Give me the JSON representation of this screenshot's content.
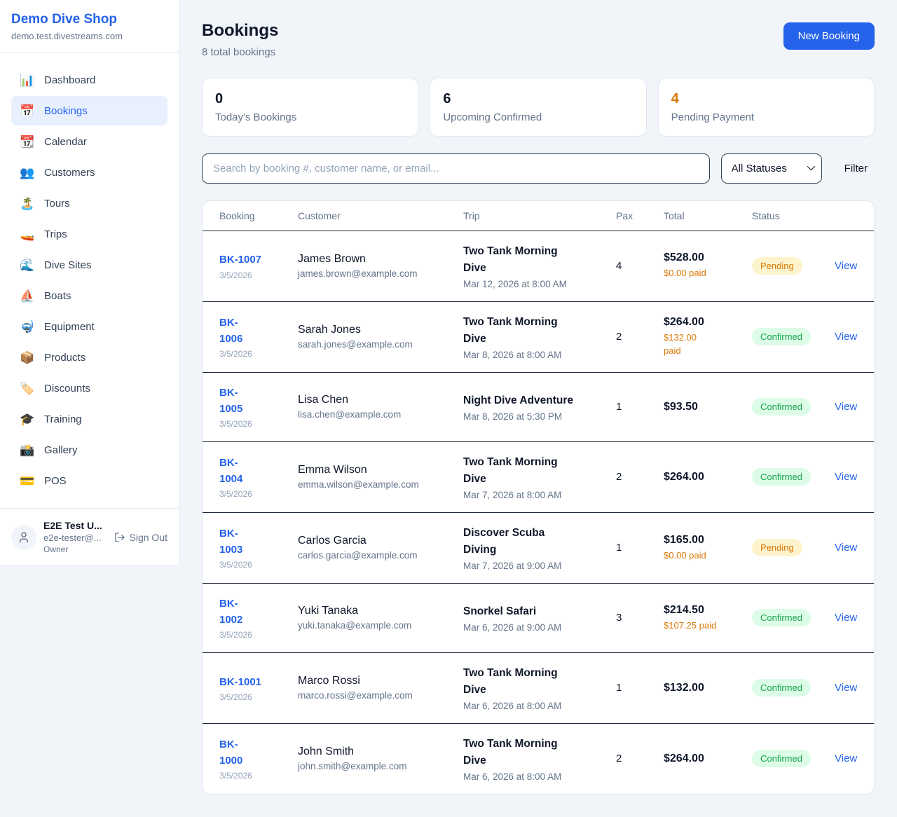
{
  "sidebar": {
    "brand": {
      "name": "Demo Dive Shop",
      "domain": "demo.test.divestreams.com"
    },
    "items": [
      {
        "label": "Dashboard",
        "icon": "bar-chart-icon",
        "glyph": "📊",
        "active": false
      },
      {
        "label": "Bookings",
        "icon": "calendar-icon",
        "glyph": "📅",
        "active": true
      },
      {
        "label": "Calendar",
        "icon": "tear-off-calendar-icon",
        "glyph": "📆",
        "active": false
      },
      {
        "label": "Customers",
        "icon": "people-icon",
        "glyph": "👥",
        "active": false
      },
      {
        "label": "Tours",
        "icon": "island-icon",
        "glyph": "🏝️",
        "active": false
      },
      {
        "label": "Trips",
        "icon": "speedboat-icon",
        "glyph": "🚤",
        "active": false
      },
      {
        "label": "Dive Sites",
        "icon": "wave-icon",
        "glyph": "🌊",
        "active": false
      },
      {
        "label": "Boats",
        "icon": "sailboat-icon",
        "glyph": "⛵",
        "active": false
      },
      {
        "label": "Equipment",
        "icon": "diving-mask-icon",
        "glyph": "🤿",
        "active": false
      },
      {
        "label": "Products",
        "icon": "package-icon",
        "glyph": "📦",
        "active": false
      },
      {
        "label": "Discounts",
        "icon": "tag-icon",
        "glyph": "🏷️",
        "active": false
      },
      {
        "label": "Training",
        "icon": "graduation-cap-icon",
        "glyph": "🎓",
        "active": false
      },
      {
        "label": "Gallery",
        "icon": "camera-icon",
        "glyph": "📸",
        "active": false
      },
      {
        "label": "POS",
        "icon": "credit-card-icon",
        "glyph": "💳",
        "active": false
      }
    ],
    "user": {
      "name": "E2E Test U...",
      "email": "e2e-tester@...",
      "role": "Owner",
      "sign_out_label": "Sign Out"
    }
  },
  "header": {
    "title": "Bookings",
    "subtitle": "8 total bookings",
    "new_booking_label": "New Booking"
  },
  "stats": [
    {
      "value": "0",
      "label": "Today's Bookings",
      "accent": false
    },
    {
      "value": "6",
      "label": "Upcoming Confirmed",
      "accent": false
    },
    {
      "value": "4",
      "label": "Pending Payment",
      "accent": true
    }
  ],
  "filters": {
    "search_placeholder": "Search by booking #, customer name, or email...",
    "status_selected": "All Statuses",
    "filter_label": "Filter"
  },
  "table": {
    "columns": [
      "Booking",
      "Customer",
      "Trip",
      "Pax",
      "Total",
      "Status"
    ],
    "rows": [
      {
        "id": "BK-1007",
        "date": "3/5/2026",
        "customer": "James Brown",
        "email": "james.brown@example.com",
        "trip": "Two Tank Morning\nDive",
        "trip_time": "Mar 12, 2026 at 8:00 AM",
        "pax": "4",
        "total": "$528.00",
        "paid": "$0.00 paid",
        "status": "Pending",
        "action": "View"
      },
      {
        "id": "BK-\n1006",
        "date": "3/5/2026",
        "customer": "Sarah Jones",
        "email": "sarah.jones@example.com",
        "trip": "Two Tank Morning\nDive",
        "trip_time": "Mar 8, 2026 at 8:00 AM",
        "pax": "2",
        "total": "$264.00",
        "paid": "$132.00\npaid",
        "status": "Confirmed",
        "action": "View"
      },
      {
        "id": "BK-\n1005",
        "date": "3/5/2026",
        "customer": "Lisa Chen",
        "email": "lisa.chen@example.com",
        "trip": "Night Dive Adventure",
        "trip_time": "Mar 8, 2026 at 5:30 PM",
        "pax": "1",
        "total": "$93.50",
        "paid": "",
        "status": "Confirmed",
        "action": "View"
      },
      {
        "id": "BK-\n1004",
        "date": "3/5/2026",
        "customer": "Emma Wilson",
        "email": "emma.wilson@example.com",
        "trip": "Two Tank Morning\nDive",
        "trip_time": "Mar 7, 2026 at 8:00 AM",
        "pax": "2",
        "total": "$264.00",
        "paid": "",
        "status": "Confirmed",
        "action": "View"
      },
      {
        "id": "BK-\n1003",
        "date": "3/5/2026",
        "customer": "Carlos Garcia",
        "email": "carlos.garcia@example.com",
        "trip": "Discover Scuba\nDiving",
        "trip_time": "Mar 7, 2026 at 9:00 AM",
        "pax": "1",
        "total": "$165.00",
        "paid": "$0.00 paid",
        "status": "Pending",
        "action": "View"
      },
      {
        "id": "BK-\n1002",
        "date": "3/5/2026",
        "customer": "Yuki Tanaka",
        "email": "yuki.tanaka@example.com",
        "trip": "Snorkel Safari",
        "trip_time": "Mar 6, 2026 at 9:00 AM",
        "pax": "3",
        "total": "$214.50",
        "paid": "$107.25 paid",
        "status": "Confirmed",
        "action": "View"
      },
      {
        "id": "BK-1001",
        "date": "3/5/2026",
        "customer": "Marco Rossi",
        "email": "marco.rossi@example.com",
        "trip": "Two Tank Morning\nDive",
        "trip_time": "Mar 6, 2026 at 8:00 AM",
        "pax": "1",
        "total": "$132.00",
        "paid": "",
        "status": "Confirmed",
        "action": "View"
      },
      {
        "id": "BK-\n1000",
        "date": "3/5/2026",
        "customer": "John Smith",
        "email": "john.smith@example.com",
        "trip": "Two Tank Morning\nDive",
        "trip_time": "Mar 6, 2026 at 8:00 AM",
        "pax": "2",
        "total": "$264.00",
        "paid": "",
        "status": "Confirmed",
        "action": "View"
      }
    ]
  },
  "colors": {
    "brand_blue": "#2563eb",
    "accent_orange": "#d97706",
    "pending_bg": "#fdf4cd",
    "pending_text": "#d97706",
    "confirmed_bg": "#dcfce7",
    "confirmed_text": "#16a34a",
    "page_bg": "#f1f5f9"
  }
}
